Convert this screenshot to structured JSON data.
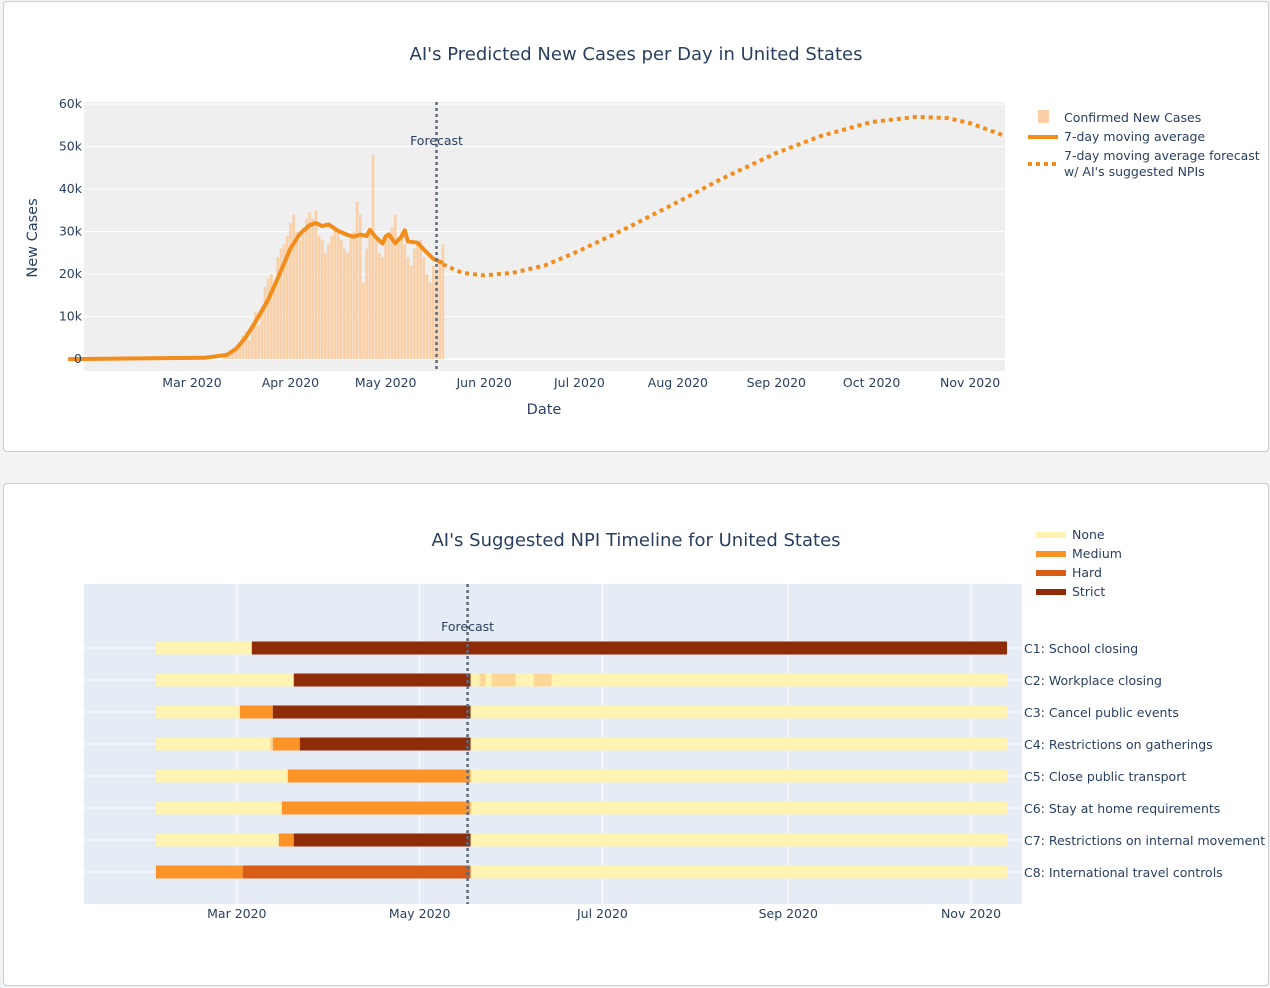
{
  "chart_data": [
    {
      "type": "bar+line",
      "title": "AI's Predicted New Cases per Day in United States",
      "xlabel": "Date",
      "ylabel": "New Cases",
      "ylim": [
        -2800,
        60500
      ],
      "xlim": [
        "2020-01-27",
        "2020-11-12"
      ],
      "x_ticks": [
        {
          "date": "2020-03-01",
          "label": "Mar 2020"
        },
        {
          "date": "2020-04-01",
          "label": "Apr 2020"
        },
        {
          "date": "2020-05-01",
          "label": "May 2020"
        },
        {
          "date": "2020-06-01",
          "label": "Jun 2020"
        },
        {
          "date": "2020-07-01",
          "label": "Jul 2020"
        },
        {
          "date": "2020-08-01",
          "label": "Aug 2020"
        },
        {
          "date": "2020-09-01",
          "label": "Sep 2020"
        },
        {
          "date": "2020-10-01",
          "label": "Oct 2020"
        },
        {
          "date": "2020-11-01",
          "label": "Nov 2020"
        }
      ],
      "y_ticks": [
        {
          "value": 0,
          "label": "0"
        },
        {
          "value": 10000,
          "label": "10k"
        },
        {
          "value": 20000,
          "label": "20k"
        },
        {
          "value": 30000,
          "label": "30k"
        },
        {
          "value": 40000,
          "label": "40k"
        },
        {
          "value": 50000,
          "label": "50k"
        },
        {
          "value": 60000,
          "label": "60k"
        }
      ],
      "forecast_line": {
        "date": "2020-05-17",
        "label": "Forecast"
      },
      "grid": true,
      "legend_position": "right",
      "colors": {
        "bar": "#f9d0a8",
        "line": "#f28c1a",
        "forecast": "#f28c1a",
        "vline": "#606a78",
        "plot_bg": "#efefef"
      },
      "series": [
        {
          "name": "Confirmed New Cases",
          "kind": "bar",
          "start_date": "2020-03-11",
          "values": [
            500,
            800,
            1200,
            2000,
            2800,
            3500,
            5500,
            6500,
            4500,
            7500,
            11000,
            8000,
            12000,
            17000,
            19000,
            20000,
            18000,
            24000,
            26000,
            27000,
            29000,
            32000,
            34000,
            30000,
            28000,
            31000,
            33000,
            34500,
            33000,
            35000,
            29000,
            28000,
            25000,
            27000,
            29000,
            31000,
            30000,
            28000,
            26000,
            25000,
            29000,
            30000,
            37000,
            34000,
            18000,
            26000,
            30000,
            48000,
            28000,
            25000,
            24000,
            29000,
            30000,
            31000,
            34000,
            28000,
            30000,
            27000,
            24000,
            22000,
            26000,
            27000,
            28000,
            24000,
            20000,
            18000,
            22000,
            21000,
            23000,
            27000
          ]
        },
        {
          "name": "7-day moving average",
          "kind": "line",
          "points": [
            {
              "date": "2020-01-22",
              "value": 0
            },
            {
              "date": "2020-03-05",
              "value": 300
            },
            {
              "date": "2020-03-12",
              "value": 1000
            },
            {
              "date": "2020-03-15",
              "value": 2500
            },
            {
              "date": "2020-03-18",
              "value": 5200
            },
            {
              "date": "2020-03-21",
              "value": 8800
            },
            {
              "date": "2020-03-25",
              "value": 14000
            },
            {
              "date": "2020-03-28",
              "value": 19000
            },
            {
              "date": "2020-04-01",
              "value": 26000
            },
            {
              "date": "2020-04-04",
              "value": 29500
            },
            {
              "date": "2020-04-07",
              "value": 31500
            },
            {
              "date": "2020-04-09",
              "value": 32000
            },
            {
              "date": "2020-04-11",
              "value": 31300
            },
            {
              "date": "2020-04-13",
              "value": 31700
            },
            {
              "date": "2020-04-16",
              "value": 30200
            },
            {
              "date": "2020-04-19",
              "value": 29200
            },
            {
              "date": "2020-04-21",
              "value": 28800
            },
            {
              "date": "2020-04-23",
              "value": 29300
            },
            {
              "date": "2020-04-25",
              "value": 29000
            },
            {
              "date": "2020-04-26",
              "value": 30400
            },
            {
              "date": "2020-04-28",
              "value": 28600
            },
            {
              "date": "2020-04-30",
              "value": 27200
            },
            {
              "date": "2020-05-01",
              "value": 28900
            },
            {
              "date": "2020-05-02",
              "value": 29300
            },
            {
              "date": "2020-05-04",
              "value": 27300
            },
            {
              "date": "2020-05-06",
              "value": 28800
            },
            {
              "date": "2020-05-07",
              "value": 30300
            },
            {
              "date": "2020-05-08",
              "value": 27700
            },
            {
              "date": "2020-05-11",
              "value": 27400
            },
            {
              "date": "2020-05-13",
              "value": 25800
            },
            {
              "date": "2020-05-16",
              "value": 23600
            },
            {
              "date": "2020-05-19",
              "value": 22600
            }
          ]
        },
        {
          "name": "7-day moving average forecast w/ AI's suggested NPIs",
          "legend_lines": [
            "7-day moving average forecast",
            "w/ AI's suggested NPIs"
          ],
          "kind": "line-dotted",
          "points": [
            {
              "date": "2020-05-19",
              "value": 22300
            },
            {
              "date": "2020-05-25",
              "value": 20300
            },
            {
              "date": "2020-06-01",
              "value": 19700
            },
            {
              "date": "2020-06-10",
              "value": 20300
            },
            {
              "date": "2020-06-20",
              "value": 22000
            },
            {
              "date": "2020-07-01",
              "value": 25500
            },
            {
              "date": "2020-07-15",
              "value": 30500
            },
            {
              "date": "2020-08-01",
              "value": 37000
            },
            {
              "date": "2020-08-15",
              "value": 42500
            },
            {
              "date": "2020-09-01",
              "value": 48500
            },
            {
              "date": "2020-09-15",
              "value": 52500
            },
            {
              "date": "2020-10-01",
              "value": 55800
            },
            {
              "date": "2020-10-15",
              "value": 57000
            },
            {
              "date": "2020-10-25",
              "value": 56700
            },
            {
              "date": "2020-11-01",
              "value": 55500
            },
            {
              "date": "2020-11-12",
              "value": 52500
            }
          ]
        }
      ]
    },
    {
      "type": "timeline",
      "title": "AI's Suggested NPI Timeline for United States",
      "xlim": [
        "2020-01-10",
        "2020-11-18"
      ],
      "x_ticks": [
        {
          "date": "2020-03-01",
          "label": "Mar 2020"
        },
        {
          "date": "2020-05-01",
          "label": "May 2020"
        },
        {
          "date": "2020-07-01",
          "label": "Jul 2020"
        },
        {
          "date": "2020-09-01",
          "label": "Sep 2020"
        },
        {
          "date": "2020-11-01",
          "label": "Nov 2020"
        }
      ],
      "forecast_line": {
        "date": "2020-05-17",
        "label": "Forecast"
      },
      "grid": true,
      "legend_position": "top-right",
      "colors": {
        "plot_bg": "#e5ecf6",
        "vline": "#606a78"
      },
      "levels": [
        {
          "name": "None",
          "color": "#fef3b2"
        },
        {
          "name": "Medium",
          "color": "#fe9428"
        },
        {
          "name": "Hard",
          "color": "#d95d14"
        },
        {
          "name": "Strict",
          "color": "#8f2b06"
        }
      ],
      "extra_colors": {
        "mixed": "#fdd795"
      },
      "rows": [
        {
          "label": "C1: School closing",
          "segments": [
            {
              "start": "2020-02-03",
              "end": "2020-03-06",
              "level": "None"
            },
            {
              "start": "2020-03-06",
              "end": "2020-11-13",
              "level": "Strict"
            }
          ]
        },
        {
          "label": "C2: Workplace closing",
          "segments": [
            {
              "start": "2020-02-03",
              "end": "2020-03-20",
              "level": "None"
            },
            {
              "start": "2020-03-20",
              "end": "2020-05-18",
              "level": "Strict"
            },
            {
              "start": "2020-05-18",
              "end": "2020-05-21",
              "level": "None"
            },
            {
              "start": "2020-05-21",
              "end": "2020-05-23",
              "level": "mixed"
            },
            {
              "start": "2020-05-23",
              "end": "2020-05-25",
              "level": "None"
            },
            {
              "start": "2020-05-25",
              "end": "2020-06-02",
              "level": "mixed"
            },
            {
              "start": "2020-06-02",
              "end": "2020-06-08",
              "level": "None"
            },
            {
              "start": "2020-06-08",
              "end": "2020-06-14",
              "level": "mixed"
            },
            {
              "start": "2020-06-14",
              "end": "2020-11-13",
              "level": "None"
            }
          ]
        },
        {
          "label": "C3: Cancel public events",
          "segments": [
            {
              "start": "2020-02-03",
              "end": "2020-03-02",
              "level": "None"
            },
            {
              "start": "2020-03-02",
              "end": "2020-03-13",
              "level": "Medium"
            },
            {
              "start": "2020-03-13",
              "end": "2020-05-18",
              "level": "Strict"
            },
            {
              "start": "2020-05-18",
              "end": "2020-11-13",
              "level": "None"
            }
          ]
        },
        {
          "label": "C4: Restrictions on gatherings",
          "segments": [
            {
              "start": "2020-02-03",
              "end": "2020-03-12",
              "level": "None"
            },
            {
              "start": "2020-03-12",
              "end": "2020-03-13",
              "level": "mixed"
            },
            {
              "start": "2020-03-13",
              "end": "2020-03-22",
              "level": "Medium"
            },
            {
              "start": "2020-03-22",
              "end": "2020-05-18",
              "level": "Strict"
            },
            {
              "start": "2020-05-18",
              "end": "2020-11-13",
              "level": "None"
            }
          ]
        },
        {
          "label": "C5: Close public transport",
          "segments": [
            {
              "start": "2020-02-03",
              "end": "2020-03-18",
              "level": "None"
            },
            {
              "start": "2020-03-18",
              "end": "2020-05-18",
              "level": "Medium"
            },
            {
              "start": "2020-05-18",
              "end": "2020-11-13",
              "level": "None"
            }
          ]
        },
        {
          "label": "C6: Stay at home requirements",
          "segments": [
            {
              "start": "2020-02-03",
              "end": "2020-03-16",
              "level": "None"
            },
            {
              "start": "2020-03-16",
              "end": "2020-05-18",
              "level": "Medium"
            },
            {
              "start": "2020-05-18",
              "end": "2020-11-13",
              "level": "None"
            }
          ]
        },
        {
          "label": "C7: Restrictions on internal movement",
          "segments": [
            {
              "start": "2020-02-03",
              "end": "2020-03-15",
              "level": "None"
            },
            {
              "start": "2020-03-15",
              "end": "2020-03-20",
              "level": "Medium"
            },
            {
              "start": "2020-03-20",
              "end": "2020-05-18",
              "level": "Strict"
            },
            {
              "start": "2020-05-18",
              "end": "2020-11-13",
              "level": "None"
            }
          ]
        },
        {
          "label": "C8: International travel controls",
          "segments": [
            {
              "start": "2020-02-03",
              "end": "2020-03-03",
              "level": "Medium"
            },
            {
              "start": "2020-03-03",
              "end": "2020-05-18",
              "level": "Hard"
            },
            {
              "start": "2020-05-18",
              "end": "2020-11-13",
              "level": "None"
            }
          ]
        }
      ]
    }
  ]
}
